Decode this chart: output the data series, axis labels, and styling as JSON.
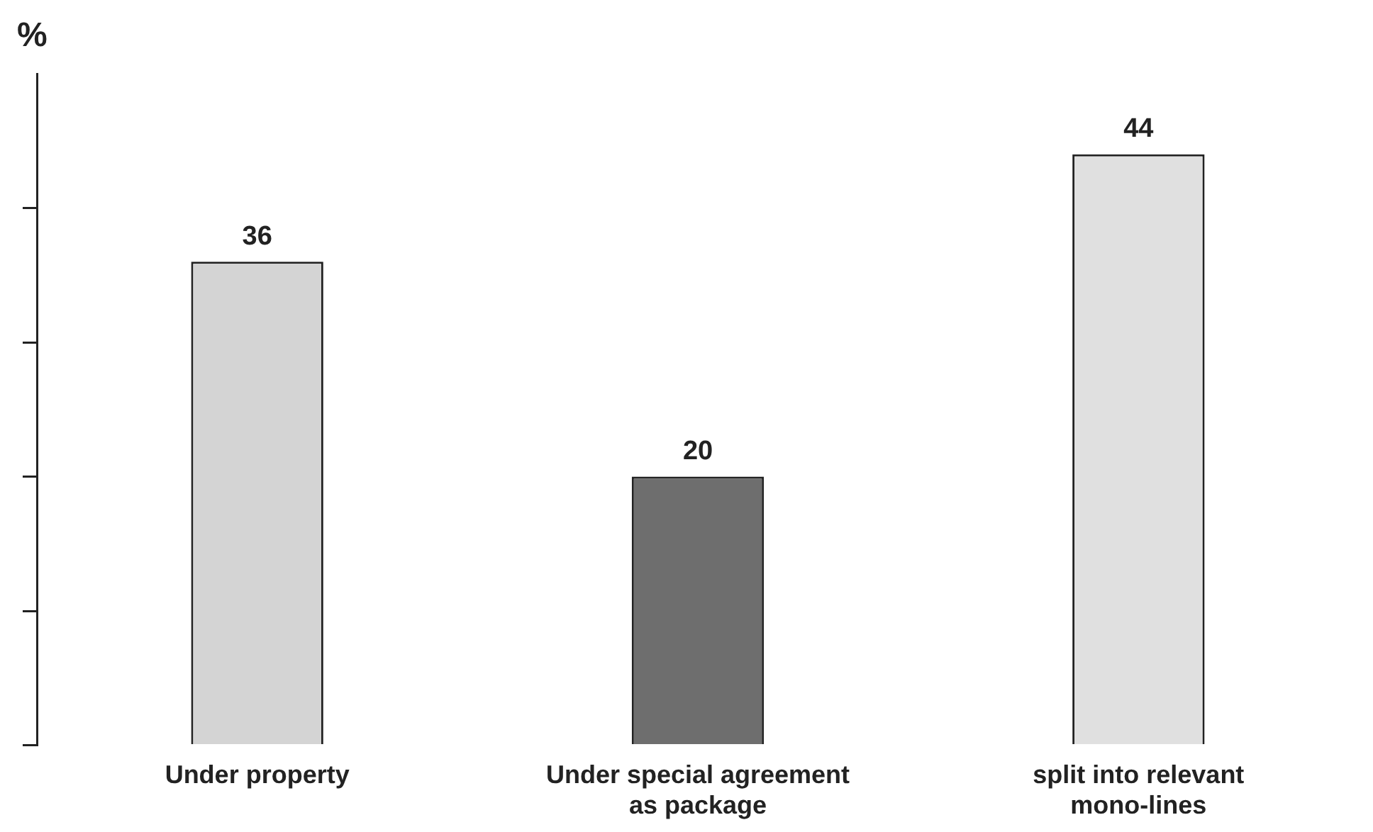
{
  "chart_data": {
    "type": "bar",
    "ylabel": "%",
    "categories": [
      "Under property",
      "Under special agreement as package",
      "split into relevant mono-lines"
    ],
    "values": [
      36,
      20,
      44
    ],
    "colors": [
      "#d4d4d4",
      "#6e6e6e",
      "#e0e0e0"
    ],
    "ylim": [
      0,
      50
    ],
    "yticks": [
      {
        "value": 0,
        "label": null
      },
      {
        "value": 10,
        "label": null
      },
      {
        "value": 20,
        "label": null
      },
      {
        "value": 30,
        "label": null
      },
      {
        "value": 40,
        "label": null
      }
    ],
    "tick_labels": "x",
    "grid": false,
    "legend": false,
    "data_labels": true
  }
}
